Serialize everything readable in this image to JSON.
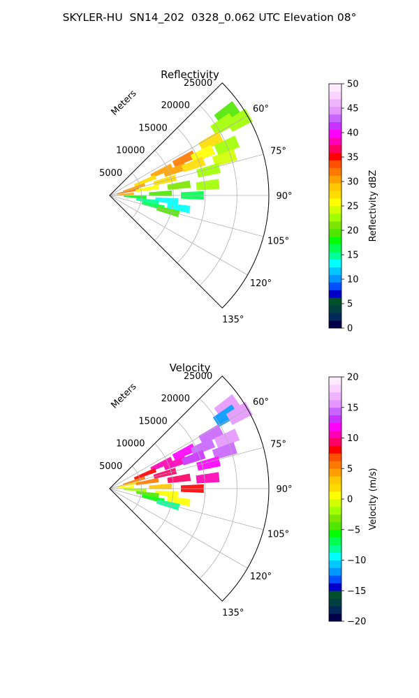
{
  "title": "SKYLER-HU  SN14_202  0328_0.062 UTC Elevation 08°",
  "chart_data": [
    {
      "type": "heatmap",
      "projection": "polar-sector",
      "title": "Reflectivity",
      "radial_label": "Meters",
      "radial_ticks": [
        5000,
        10000,
        15000,
        20000,
        25000
      ],
      "radial_range": [
        0,
        25000
      ],
      "angle_range_deg": [
        45,
        135
      ],
      "angle_ticks": [
        "60°",
        "75°",
        "90°",
        "105°",
        "120°",
        "135°"
      ],
      "grid": true,
      "colorbar": {
        "label": "Reflectivity dBZ",
        "range": [
          0,
          50
        ],
        "ticks": [
          "0",
          "5",
          "10",
          "15",
          "20",
          "25",
          "30",
          "35",
          "40",
          "45",
          "50"
        ],
        "colors": [
          "#00004a",
          "#00285a",
          "#004040",
          "#005028",
          "#0000c8",
          "#0050ff",
          "#0096ff",
          "#00c8ff",
          "#00ffff",
          "#00ff96",
          "#00ff50",
          "#00ff00",
          "#50e600",
          "#7de600",
          "#a0ff00",
          "#d2ff00",
          "#ffff00",
          "#ffdc00",
          "#ffc800",
          "#ffa000",
          "#ff7800",
          "#ff5000",
          "#ff0000",
          "#ff0064",
          "#ff00b4",
          "#ff00ff",
          "#c832ff",
          "#c864ff",
          "#e696ff",
          "#f0b4ff",
          "#fad2ff",
          "#ffeaff"
        ]
      },
      "echoes": [
        {
          "az": 55,
          "r": 22500,
          "v": 20
        },
        {
          "az": 58,
          "r": 21000,
          "v": 22
        },
        {
          "az": 60,
          "r": 23500,
          "v": 22
        },
        {
          "az": 62,
          "r": 18000,
          "v": 28
        },
        {
          "az": 64,
          "r": 13000,
          "v": 32
        },
        {
          "az": 65,
          "r": 9000,
          "v": 30
        },
        {
          "az": 66,
          "r": 16000,
          "v": 26
        },
        {
          "az": 67,
          "r": 20000,
          "v": 22
        },
        {
          "az": 68,
          "r": 6000,
          "v": 28
        },
        {
          "az": 69,
          "r": 11000,
          "v": 31
        },
        {
          "az": 70,
          "r": 14000,
          "v": 27
        },
        {
          "az": 72,
          "r": 19000,
          "v": 24
        },
        {
          "az": 73,
          "r": 4000,
          "v": 30
        },
        {
          "az": 75,
          "r": 9000,
          "v": 27
        },
        {
          "az": 76,
          "r": 16000,
          "v": 22
        },
        {
          "az": 78,
          "r": 3000,
          "v": 32
        },
        {
          "az": 80,
          "r": 6000,
          "v": 26
        },
        {
          "az": 82,
          "r": 11000,
          "v": 21
        },
        {
          "az": 84,
          "r": 15500,
          "v": 22
        },
        {
          "az": 86,
          "r": 2000,
          "v": 30
        },
        {
          "az": 88,
          "r": 8000,
          "v": 20
        },
        {
          "az": 90,
          "r": 13000,
          "v": 16
        },
        {
          "az": 93,
          "r": 4000,
          "v": 18
        },
        {
          "az": 95,
          "r": 9000,
          "v": 14
        },
        {
          "az": 98,
          "r": 6000,
          "v": 15
        },
        {
          "az": 100,
          "r": 11000,
          "v": 13
        },
        {
          "az": 103,
          "r": 7000,
          "v": 16
        },
        {
          "az": 105,
          "r": 9500,
          "v": 20
        }
      ]
    },
    {
      "type": "heatmap",
      "projection": "polar-sector",
      "title": "Velocity",
      "radial_label": "Meters",
      "radial_ticks": [
        5000,
        10000,
        15000,
        20000,
        25000
      ],
      "radial_range": [
        0,
        25000
      ],
      "angle_range_deg": [
        45,
        135
      ],
      "angle_ticks": [
        "60°",
        "75°",
        "90°",
        "105°",
        "120°",
        "135°"
      ],
      "grid": true,
      "colorbar": {
        "label": "Velocity (m/s)",
        "range": [
          -20,
          20
        ],
        "ticks": [
          "−20",
          "−15",
          "−10",
          "−5",
          "0",
          "5",
          "10",
          "15",
          "20"
        ],
        "colors": [
          "#00004a",
          "#00285a",
          "#004040",
          "#005028",
          "#0000c8",
          "#0050ff",
          "#0096ff",
          "#00c8ff",
          "#00ffff",
          "#00ff96",
          "#00ff50",
          "#00ff00",
          "#50e600",
          "#7de600",
          "#a0ff00",
          "#d2ff00",
          "#ffff00",
          "#ffdc00",
          "#ffc800",
          "#ffa000",
          "#ff7800",
          "#ff5000",
          "#ff0000",
          "#ff0064",
          "#ff00b4",
          "#ff00ff",
          "#c832ff",
          "#c864ff",
          "#e696ff",
          "#f0b4ff",
          "#fad2ff",
          "#ffeaff"
        ]
      },
      "echoes": [
        {
          "az": 55,
          "r": 22500,
          "v": 15
        },
        {
          "az": 58,
          "r": 21500,
          "v": -12
        },
        {
          "az": 60,
          "r": 23500,
          "v": 16
        },
        {
          "az": 62,
          "r": 18000,
          "v": 14
        },
        {
          "az": 64,
          "r": 13000,
          "v": 12
        },
        {
          "az": 65,
          "r": 9000,
          "v": 10
        },
        {
          "az": 66,
          "r": 16000,
          "v": 14
        },
        {
          "az": 67,
          "r": 20000,
          "v": 15
        },
        {
          "az": 68,
          "r": 6000,
          "v": 8
        },
        {
          "az": 69,
          "r": 11000,
          "v": 11
        },
        {
          "az": 70,
          "r": 14000,
          "v": 13
        },
        {
          "az": 72,
          "r": 19000,
          "v": 14
        },
        {
          "az": 73,
          "r": 4000,
          "v": 5
        },
        {
          "az": 75,
          "r": 9000,
          "v": 9
        },
        {
          "az": 76,
          "r": 16000,
          "v": 12
        },
        {
          "az": 78,
          "r": 3000,
          "v": 2
        },
        {
          "az": 80,
          "r": 6000,
          "v": 6
        },
        {
          "az": 82,
          "r": 11000,
          "v": 9
        },
        {
          "az": 84,
          "r": 15500,
          "v": 10
        },
        {
          "az": 86,
          "r": 2000,
          "v": 0
        },
        {
          "az": 88,
          "r": 8000,
          "v": 3
        },
        {
          "az": 90,
          "r": 13000,
          "v": 8
        },
        {
          "az": 93,
          "r": 4000,
          "v": -2
        },
        {
          "az": 95,
          "r": 9000,
          "v": 1
        },
        {
          "az": 98,
          "r": 6000,
          "v": -4
        },
        {
          "az": 100,
          "r": 11000,
          "v": 0
        },
        {
          "az": 103,
          "r": 7000,
          "v": -6
        },
        {
          "az": 105,
          "r": 9500,
          "v": -8
        }
      ]
    }
  ]
}
